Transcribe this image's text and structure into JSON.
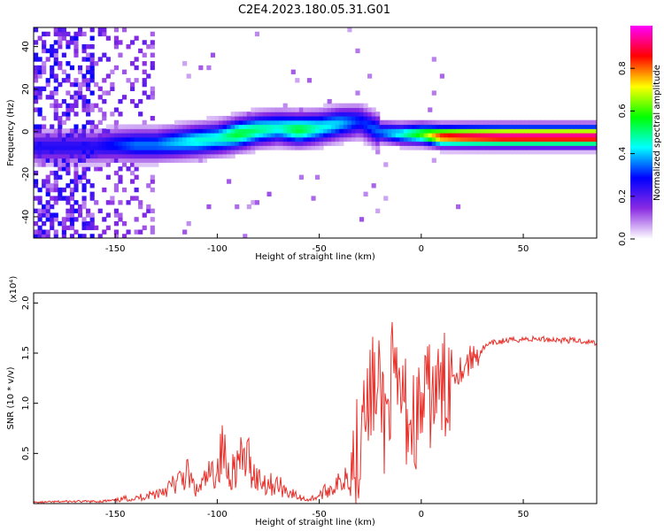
{
  "title": "C2E4.2023.180.05.31.G01",
  "chart_data": [
    {
      "type": "heatmap",
      "xlabel": "Height of straight line (km)",
      "ylabel": "Frequency (Hz)",
      "xlim": [
        -190,
        86
      ],
      "ylim": [
        -50,
        49
      ],
      "xticks": [
        -150,
        -100,
        -50,
        0,
        50
      ],
      "xtick_labels": [
        "-150",
        "-100",
        "-50",
        "0",
        "50"
      ],
      "yticks": [
        -40,
        -20,
        0,
        20,
        40
      ],
      "ytick_labels": [
        "-40",
        "-20",
        "0",
        "20",
        "40"
      ],
      "colorbar": {
        "label": "Normalized spectral amplitude",
        "range": [
          0,
          1
        ],
        "ticks": [
          0.0,
          0.2,
          0.4,
          0.6,
          0.8
        ],
        "tick_labels": [
          "0.0",
          "0.2",
          "0.4",
          "0.6",
          "0.8"
        ],
        "colors": [
          "#ffffff",
          "#8a2be2",
          "#0000ff",
          "#00ffff",
          "#00ff00",
          "#ffff00",
          "#ff0000",
          "#ff00ff"
        ]
      },
      "ridge": {
        "x": [
          -160,
          -150,
          -140,
          -130,
          -120,
          -110,
          -100,
          -90,
          -80,
          -70,
          -60,
          -50,
          -40,
          -30,
          -20,
          -10,
          0,
          10,
          20,
          40,
          60,
          86
        ],
        "y": [
          -7,
          -6,
          -6,
          -6,
          -5,
          -4,
          -3,
          -1,
          1,
          2,
          1,
          2,
          4,
          5,
          0,
          -1,
          -1,
          -2,
          -2,
          -2,
          -2,
          -2
        ],
        "amplitude": [
          0.25,
          0.3,
          0.35,
          0.35,
          0.4,
          0.45,
          0.45,
          0.55,
          0.5,
          0.45,
          0.55,
          0.45,
          0.4,
          0.3,
          0.35,
          0.45,
          0.6,
          0.85,
          0.9,
          0.95,
          0.95,
          0.95
        ]
      },
      "grid": false,
      "grid_cols": 140,
      "grid_rows": 50
    },
    {
      "type": "line",
      "xlabel": "Height of straight line (km)",
      "ylabel": "SNR (10 * v/v)",
      "y_multiplier": "(x10⁴)",
      "xlim": [
        -190,
        86
      ],
      "ylim": [
        0,
        2.1
      ],
      "xticks": [
        -150,
        -100,
        -50,
        0,
        50
      ],
      "xtick_labels": [
        "-150",
        "-100",
        "-50",
        "0",
        "50"
      ],
      "yticks": [
        0.5,
        1.0,
        1.5,
        2.0
      ],
      "ytick_labels": [
        "0.5",
        "1.0",
        "1.5",
        "2.0"
      ],
      "grid": false,
      "series": [
        {
          "color": "#e8302a",
          "x": [
            -190,
            -175,
            -160,
            -150,
            -145,
            -140,
            -135,
            -130,
            -125,
            -120,
            -115,
            -110,
            -105,
            -100,
            -97,
            -95,
            -90,
            -85,
            -82,
            -80,
            -75,
            -70,
            -65,
            -60,
            -55,
            -50,
            -45,
            -40,
            -35,
            -32,
            -30,
            -28,
            -26,
            -24,
            -22,
            -20,
            -18,
            -16,
            -14,
            -12,
            -10,
            -8,
            -5,
            -2,
            0,
            5,
            10,
            15,
            20,
            25,
            30,
            35,
            40,
            50,
            60,
            70,
            80,
            86
          ],
          "y": [
            0.01,
            0.02,
            0.02,
            0.03,
            0.05,
            0.05,
            0.08,
            0.1,
            0.15,
            0.2,
            0.3,
            0.12,
            0.25,
            0.35,
            0.55,
            0.3,
            0.4,
            0.45,
            0.3,
            0.25,
            0.2,
            0.18,
            0.12,
            0.06,
            0.04,
            0.08,
            0.15,
            0.2,
            0.35,
            0.5,
            0.6,
            1.4,
            0.8,
            1.3,
            0.9,
            1.2,
            0.8,
            1.0,
            1.3,
            1.0,
            1.1,
            0.95,
            0.8,
            0.85,
            0.95,
            1.1,
            1.1,
            1.3,
            1.35,
            1.45,
            1.55,
            1.6,
            1.62,
            1.64,
            1.64,
            1.63,
            1.62,
            1.6
          ]
        }
      ]
    }
  ]
}
